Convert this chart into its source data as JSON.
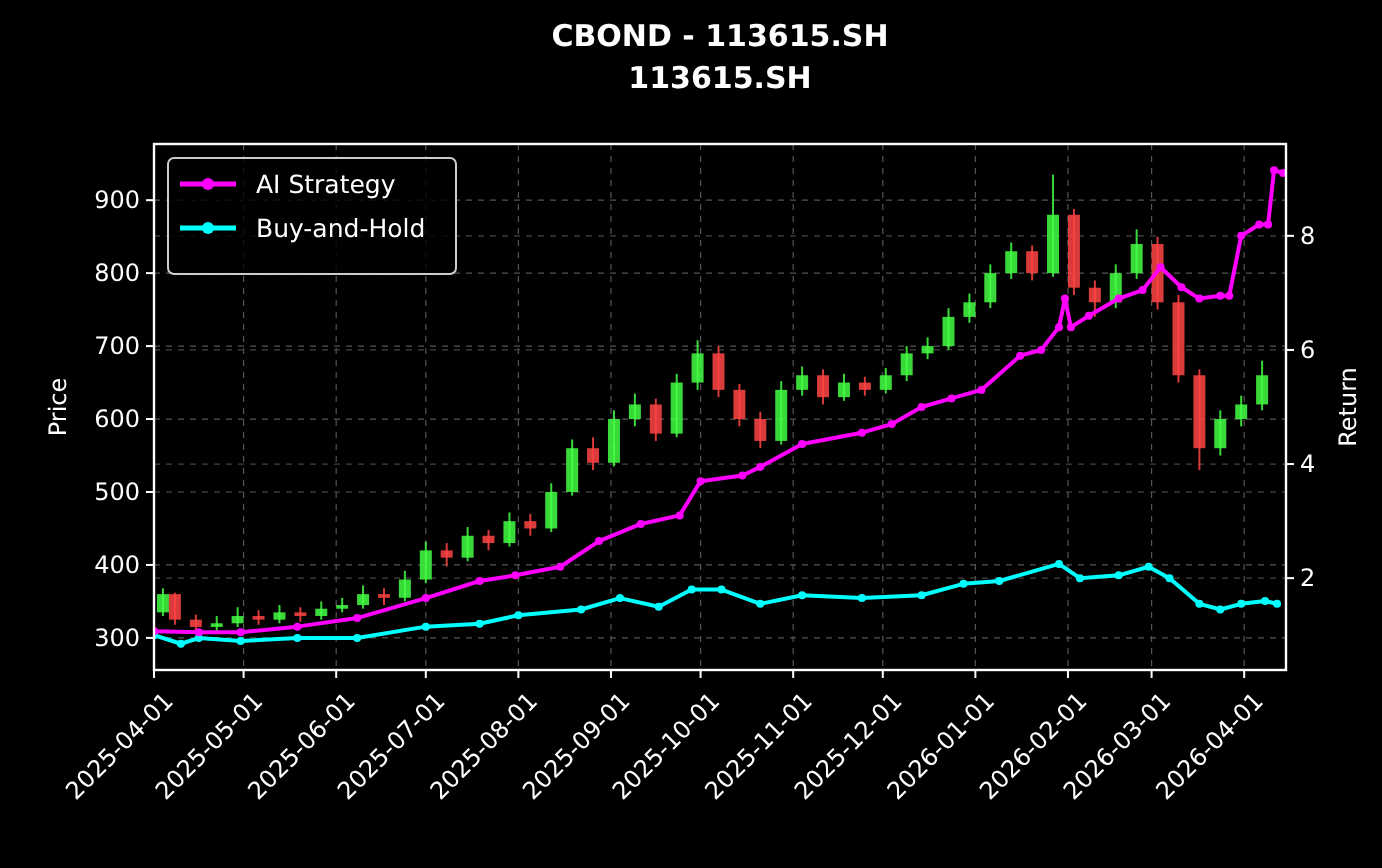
{
  "chart_data": {
    "type": "candlestick",
    "title": "CBOND - 113615.SH",
    "subtitle": "113615.SH",
    "ylabel": "Price",
    "y2label": "Return",
    "x": [
      "2025-04-04",
      "2025-04-08",
      "2025-04-15",
      "2025-04-22",
      "2025-04-29",
      "2025-05-06",
      "2025-05-13",
      "2025-05-20",
      "2025-05-27",
      "2025-06-03",
      "2025-06-10",
      "2025-06-17",
      "2025-06-24",
      "2025-07-01",
      "2025-07-08",
      "2025-07-15",
      "2025-07-22",
      "2025-07-29",
      "2025-08-05",
      "2025-08-12",
      "2025-08-19",
      "2025-08-26",
      "2025-09-02",
      "2025-09-09",
      "2025-09-16",
      "2025-09-23",
      "2025-09-30",
      "2025-10-07",
      "2025-10-14",
      "2025-10-21",
      "2025-10-28",
      "2025-11-04",
      "2025-11-11",
      "2025-11-18",
      "2025-11-25",
      "2025-12-02",
      "2025-12-09",
      "2025-12-16",
      "2025-12-23",
      "2025-12-30",
      "2026-01-06",
      "2026-01-13",
      "2026-01-20",
      "2026-01-27",
      "2026-02-03",
      "2026-02-10",
      "2026-02-17",
      "2026-02-24",
      "2026-03-03",
      "2026-03-10",
      "2026-03-17",
      "2026-03-24",
      "2026-03-31",
      "2026-04-07"
    ],
    "ohlc": [
      [
        335,
        368,
        330,
        360
      ],
      [
        360,
        362,
        318,
        325
      ],
      [
        325,
        332,
        305,
        315
      ],
      [
        315,
        330,
        308,
        320
      ],
      [
        320,
        342,
        315,
        330
      ],
      [
        330,
        338,
        318,
        325
      ],
      [
        325,
        345,
        320,
        335
      ],
      [
        335,
        342,
        322,
        330
      ],
      [
        330,
        350,
        325,
        340
      ],
      [
        340,
        355,
        335,
        345
      ],
      [
        345,
        372,
        340,
        360
      ],
      [
        360,
        368,
        345,
        355
      ],
      [
        355,
        392,
        350,
        380
      ],
      [
        380,
        432,
        375,
        420
      ],
      [
        420,
        430,
        398,
        410
      ],
      [
        410,
        452,
        405,
        440
      ],
      [
        440,
        448,
        420,
        430
      ],
      [
        430,
        472,
        425,
        460
      ],
      [
        460,
        470,
        440,
        450
      ],
      [
        450,
        512,
        445,
        500
      ],
      [
        500,
        572,
        495,
        560
      ],
      [
        560,
        575,
        530,
        540
      ],
      [
        540,
        612,
        535,
        600
      ],
      [
        600,
        635,
        590,
        620
      ],
      [
        620,
        628,
        570,
        580
      ],
      [
        580,
        662,
        575,
        650
      ],
      [
        650,
        708,
        640,
        690
      ],
      [
        690,
        700,
        630,
        640
      ],
      [
        640,
        648,
        590,
        600
      ],
      [
        600,
        610,
        560,
        570
      ],
      [
        570,
        652,
        565,
        640
      ],
      [
        640,
        672,
        632,
        660
      ],
      [
        660,
        668,
        620,
        630
      ],
      [
        630,
        662,
        625,
        650
      ],
      [
        650,
        658,
        632,
        640
      ],
      [
        640,
        670,
        635,
        660
      ],
      [
        660,
        700,
        652,
        690
      ],
      [
        690,
        712,
        682,
        700
      ],
      [
        700,
        752,
        695,
        740
      ],
      [
        740,
        772,
        732,
        760
      ],
      [
        760,
        812,
        752,
        800
      ],
      [
        800,
        842,
        792,
        830
      ],
      [
        830,
        838,
        790,
        800
      ],
      [
        800,
        935,
        795,
        880
      ],
      [
        880,
        888,
        770,
        780
      ],
      [
        780,
        790,
        740,
        760
      ],
      [
        760,
        812,
        752,
        800
      ],
      [
        800,
        860,
        792,
        840
      ],
      [
        840,
        850,
        750,
        760
      ],
      [
        760,
        770,
        650,
        660
      ],
      [
        660,
        668,
        530,
        560
      ],
      [
        560,
        612,
        550,
        600
      ],
      [
        600,
        632,
        590,
        620
      ],
      [
        620,
        680,
        612,
        660
      ]
    ],
    "series": [
      {
        "type": "line",
        "name": "AI Strategy",
        "color": "#ff00ff",
        "axis": "y2",
        "x": [
          "2025-04-01",
          "2025-04-16",
          "2025-04-30",
          "2025-05-19",
          "2025-06-08",
          "2025-07-01",
          "2025-07-19",
          "2025-07-31",
          "2025-08-15",
          "2025-08-28",
          "2025-09-11",
          "2025-09-24",
          "2025-10-01",
          "2025-10-15",
          "2025-10-21",
          "2025-11-04",
          "2025-11-24",
          "2025-12-04",
          "2025-12-14",
          "2025-12-24",
          "2026-01-03",
          "2026-01-16",
          "2026-01-23",
          "2026-01-29",
          "2026-01-31",
          "2026-02-02",
          "2026-02-08",
          "2026-02-18",
          "2026-02-26",
          "2026-03-04",
          "2026-03-11",
          "2026-03-17",
          "2026-03-24",
          "2026-03-27",
          "2026-03-31",
          "2026-04-06",
          "2026-04-09",
          "2026-04-11",
          "2026-04-14"
        ],
        "values": [
          1.07,
          1.05,
          1.05,
          1.15,
          1.3,
          1.65,
          1.95,
          2.05,
          2.2,
          2.65,
          2.95,
          3.1,
          3.7,
          3.8,
          3.95,
          4.35,
          4.55,
          4.7,
          5.0,
          5.15,
          5.3,
          5.9,
          6.0,
          6.4,
          6.9,
          6.4,
          6.6,
          6.9,
          7.05,
          7.45,
          7.1,
          6.9,
          6.95,
          6.95,
          8.0,
          8.2,
          8.2,
          9.15,
          9.1
        ]
      },
      {
        "type": "line",
        "name": "Buy-and-Hold",
        "color": "#00ffff",
        "axis": "y2",
        "x": [
          "2025-04-01",
          "2025-04-10",
          "2025-04-16",
          "2025-04-30",
          "2025-05-19",
          "2025-06-08",
          "2025-07-01",
          "2025-07-19",
          "2025-08-01",
          "2025-08-22",
          "2025-09-04",
          "2025-09-17",
          "2025-09-28",
          "2025-10-08",
          "2025-10-21",
          "2025-11-04",
          "2025-11-24",
          "2025-12-14",
          "2025-12-28",
          "2026-01-09",
          "2026-01-29",
          "2026-02-05",
          "2026-02-18",
          "2026-02-28",
          "2026-03-07",
          "2026-03-17",
          "2026-03-24",
          "2026-03-31",
          "2026-04-08",
          "2026-04-12"
        ],
        "values": [
          1.0,
          0.85,
          0.95,
          0.9,
          0.95,
          0.95,
          1.15,
          1.2,
          1.35,
          1.45,
          1.65,
          1.5,
          1.8,
          1.8,
          1.55,
          1.7,
          1.65,
          1.7,
          1.9,
          1.95,
          2.25,
          2.0,
          2.05,
          2.2,
          2.0,
          1.55,
          1.45,
          1.55,
          1.6,
          1.55
        ]
      }
    ],
    "xlim": [
      "2025-04-01",
      "2026-04-15"
    ],
    "xticks": [
      "2025-04-01",
      "2025-05-01",
      "2025-06-01",
      "2025-07-01",
      "2025-08-01",
      "2025-09-01",
      "2025-10-01",
      "2025-11-01",
      "2025-12-01",
      "2026-01-01",
      "2026-02-01",
      "2026-03-01",
      "2026-04-01"
    ],
    "ylim": [
      256,
      977
    ],
    "yticks": [
      300,
      400,
      500,
      600,
      700,
      800,
      900
    ],
    "y2lim": [
      0.39,
      9.61
    ],
    "y2ticks": [
      2,
      4,
      6,
      8
    ],
    "grid": true,
    "legend": "top left",
    "marker": "circle",
    "line_style": "solid"
  }
}
